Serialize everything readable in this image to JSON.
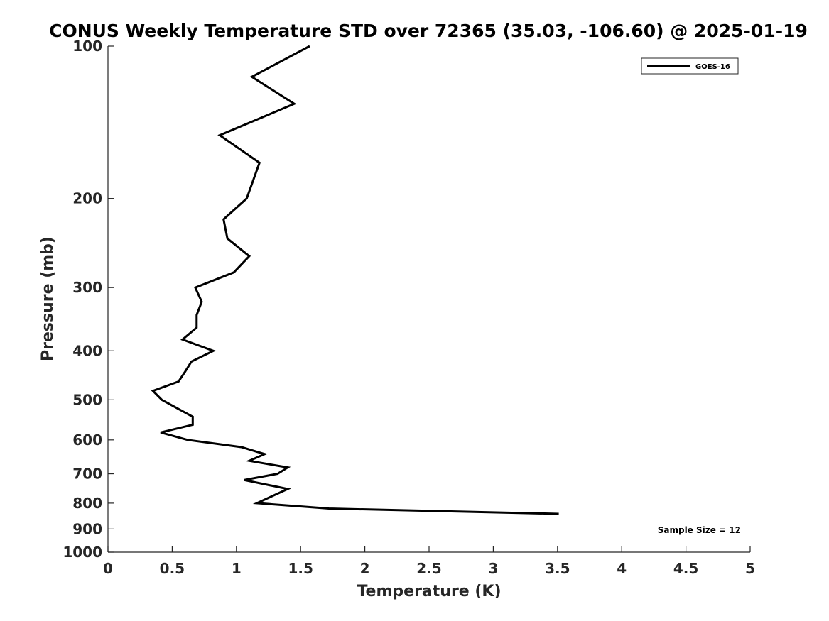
{
  "chart_data": {
    "type": "line",
    "title": "CONUS Weekly Temperature STD over 72365 (35.03, -106.60) @ 2025-01-19",
    "xlabel": "Temperature (K)",
    "ylabel": "Pressure (mb)",
    "xlim": [
      0,
      5
    ],
    "ylim": [
      100,
      1000
    ],
    "y_scale": "log",
    "y_reversed": true,
    "x_ticks": [
      "0",
      "0.5",
      "1",
      "1.5",
      "2",
      "2.5",
      "3",
      "3.5",
      "4",
      "4.5",
      "5"
    ],
    "y_ticks": [
      "100",
      "200",
      "300",
      "400",
      "500",
      "600",
      "700",
      "800",
      "900",
      "1000"
    ],
    "grid": false,
    "legend": {
      "position": "top-right",
      "entries": [
        "GOES-16"
      ]
    },
    "annotation": "Sample Size = 12",
    "series": [
      {
        "name": "GOES-16",
        "color": "#000000",
        "x": [
          1.57,
          1.12,
          1.45,
          0.87,
          1.18,
          1.08,
          0.9,
          0.93,
          1.1,
          0.98,
          0.68,
          0.73,
          0.69,
          0.69,
          0.58,
          0.82,
          0.65,
          0.6,
          0.55,
          0.35,
          0.42,
          0.66,
          0.66,
          0.41,
          0.62,
          1.04,
          1.22,
          1.1,
          1.4,
          1.32,
          1.06,
          1.4,
          1.16,
          1.72,
          3.51
        ],
        "y": [
          100,
          115,
          130,
          150,
          170,
          200,
          220,
          240,
          260,
          280,
          300,
          320,
          340,
          360,
          380,
          400,
          420,
          440,
          460,
          480,
          500,
          540,
          560,
          580,
          600,
          620,
          640,
          660,
          680,
          700,
          720,
          750,
          800,
          820,
          840
        ]
      }
    ]
  }
}
